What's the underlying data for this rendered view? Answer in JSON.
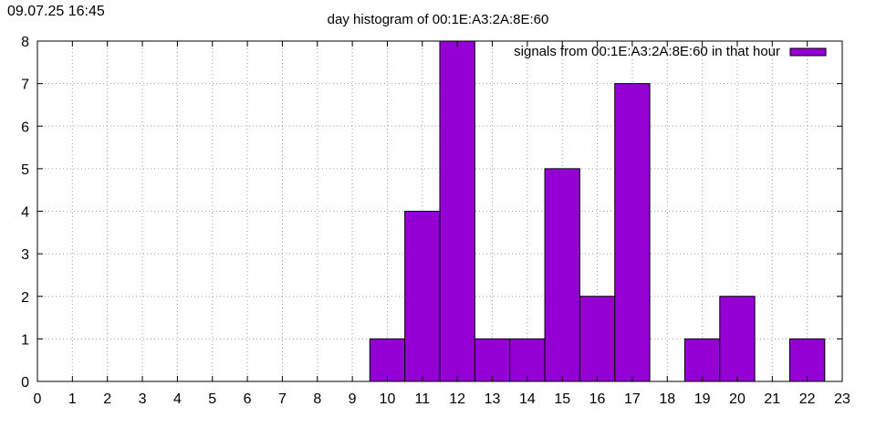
{
  "header": {
    "timestamp": "09.07.25 16:45"
  },
  "chart_data": {
    "type": "bar",
    "title": "day histogram of 00:1E:A3:2A:8E:60",
    "xlabel": "",
    "ylabel": "",
    "x_ticks": [
      0,
      1,
      2,
      3,
      4,
      5,
      6,
      7,
      8,
      9,
      10,
      11,
      12,
      13,
      14,
      15,
      16,
      17,
      18,
      19,
      20,
      21,
      22,
      23
    ],
    "y_ticks": [
      0,
      1,
      2,
      3,
      4,
      5,
      6,
      7,
      8
    ],
    "xlim": [
      0,
      23
    ],
    "ylim": [
      0,
      8
    ],
    "grid": true,
    "legend": "top-right",
    "series": [
      {
        "name": "signals from 00:1E:A3:2A:8E:60 in that hour",
        "color": "#9400d3",
        "x": [
          10,
          11,
          12,
          13,
          14,
          15,
          16,
          17,
          19,
          20,
          22
        ],
        "values": [
          1,
          4,
          8,
          1,
          1,
          5,
          2,
          7,
          1,
          2,
          1
        ]
      }
    ]
  }
}
